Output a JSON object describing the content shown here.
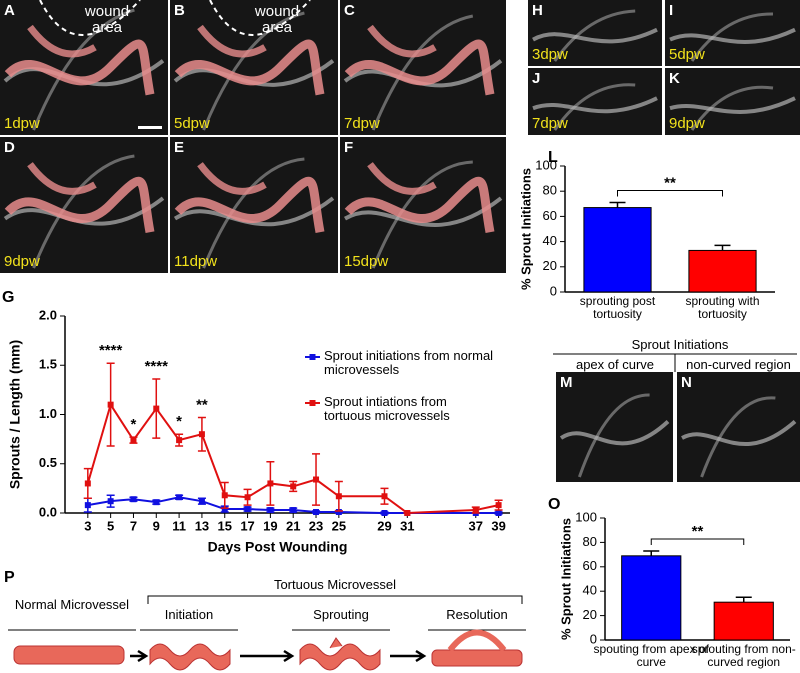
{
  "image_panels": [
    {
      "letter": "A",
      "label": "1dpw",
      "note": "wound area"
    },
    {
      "letter": "B",
      "label": "5dpw",
      "note": "wound area"
    },
    {
      "letter": "C",
      "label": "7dpw"
    },
    {
      "letter": "D",
      "label": "9dpw"
    },
    {
      "letter": "E",
      "label": "11dpw"
    },
    {
      "letter": "F",
      "label": "15dpw"
    },
    {
      "letter": "H",
      "label": "3dpw"
    },
    {
      "letter": "I",
      "label": "5dpw"
    },
    {
      "letter": "J",
      "label": "7dpw"
    },
    {
      "letter": "K",
      "label": "9dpw"
    },
    {
      "letter": "M"
    },
    {
      "letter": "N"
    }
  ],
  "inset": {
    "title": "Sprout Initiations",
    "columns": [
      "apex of curve",
      "non-curved region"
    ]
  },
  "diagram": {
    "letter": "P",
    "normal": "Normal Microvessel",
    "group": "Tortuous Microvessel",
    "stages": [
      "Initiation",
      "Sprouting",
      "Resolution"
    ]
  },
  "chart_data": [
    {
      "type": "line",
      "panel": "G",
      "x": [
        3,
        5,
        7,
        9,
        11,
        13,
        15,
        17,
        19,
        21,
        23,
        25,
        29,
        31,
        37,
        39
      ],
      "xlim": [
        1,
        40
      ],
      "xticks": [
        3,
        5,
        7,
        9,
        11,
        13,
        15,
        17,
        19,
        21,
        23,
        25,
        29,
        31,
        37,
        39
      ],
      "ylim": [
        0,
        2
      ],
      "yticks": [
        {
          "value": 0,
          "label": "0.0"
        },
        0.5,
        {
          "value": 1,
          "label": "1.0"
        },
        1.5,
        {
          "value": 2,
          "label": "2.0"
        }
      ],
      "xlabel": "Days Post Wounding",
      "ylabel": "Sprouts / Length (mm)",
      "legend": "upper right",
      "series": [
        {
          "name": "Sprout initiations from normal microvessels",
          "color": "#1010e0",
          "values": [
            0.08,
            0.12,
            0.14,
            0.11,
            0.16,
            0.12,
            0.04,
            0.04,
            0.03,
            0.03,
            0.01,
            0.01,
            0,
            0,
            0,
            0
          ],
          "errors": [
            0.07,
            0.06,
            0.02,
            0.02,
            0.02,
            0.03,
            0.03,
            0.02,
            0.02,
            0.02,
            0.01,
            0.01,
            0.01,
            0,
            0,
            0.01
          ]
        },
        {
          "name": "Sprout intiations from tortuous microvessels",
          "color": "#e01010",
          "values": [
            0.3,
            1.1,
            0.74,
            1.06,
            0.74,
            0.8,
            0.18,
            0.16,
            0.3,
            0.27,
            0.34,
            0.17,
            0.17,
            0,
            0.03,
            0.08
          ],
          "errors": [
            0.15,
            0.42,
            0.03,
            0.3,
            0.06,
            0.17,
            0.13,
            0.08,
            0.22,
            0.05,
            0.26,
            0.15,
            0.08,
            0,
            0.03,
            0.05
          ]
        }
      ],
      "annotations": [
        {
          "text": "****",
          "x": 5
        },
        {
          "text": "*",
          "x": 7
        },
        {
          "text": "****",
          "x": 9
        },
        {
          "text": "*",
          "x": 11
        },
        {
          "text": "**",
          "x": 13
        }
      ]
    },
    {
      "type": "bar",
      "panel": "L",
      "categories": [
        "sprouting post tortuosity",
        "sprouting with tortuosity"
      ],
      "values": [
        67,
        33
      ],
      "errors": [
        4,
        4
      ],
      "colors": [
        "#0000ff",
        "#ff0000"
      ],
      "ylim": [
        0,
        100
      ],
      "yticks": [
        0,
        20,
        40,
        60,
        80,
        100
      ],
      "ylabel": "% Sprout Initiations",
      "significance": "**"
    },
    {
      "type": "bar",
      "panel": "O",
      "categories": [
        "spouting from apex of curve",
        "sprouting from non-curved region"
      ],
      "values": [
        69,
        31
      ],
      "errors": [
        4,
        4
      ],
      "colors": [
        "#0000ff",
        "#ff0000"
      ],
      "ylim": [
        0,
        100
      ],
      "yticks": [
        0,
        20,
        40,
        60,
        80,
        100
      ],
      "ylabel": "% Sprout Initiations",
      "significance": "**"
    }
  ]
}
